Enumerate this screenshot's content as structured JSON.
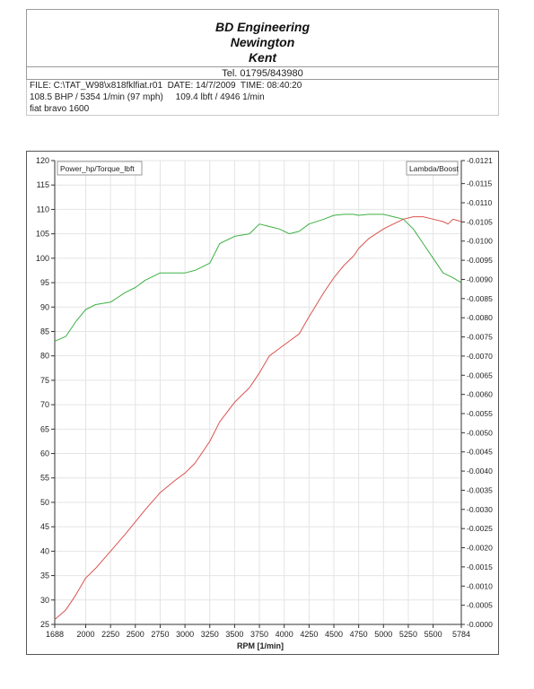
{
  "header": {
    "company_line1": "BD Engineering",
    "company_line2": "Newington",
    "company_line3": "Kent",
    "telephone": "Tel. 01795/843980"
  },
  "run_info": {
    "line1": "FILE: C:\\TAT_W98\\x818fklfiat.r01  DATE: 14/7/2009  TIME: 08:40:20",
    "line2": "108.5 BHP / 5354 1/min (97 mph)     109.4 lbft / 4946 1/min",
    "line3": "fiat bravo 1600"
  },
  "colors": {
    "power_torque_series": "#3cb043",
    "lambda_boost_series": "#d9534f",
    "grid": "#e4e4e4"
  },
  "chart_data": {
    "type": "line",
    "legend_left": "Power_hp/Torque_lbft",
    "legend_right": "Lambda/Boost",
    "xlabel": "RPM  [1/min]",
    "xlim": [
      1688,
      5784
    ],
    "ylim_left": [
      25,
      120
    ],
    "ylim_right": [
      0.0,
      0.0121
    ],
    "x_ticks": [
      "1688",
      "2000",
      "2250",
      "2500",
      "2750",
      "3000",
      "3250",
      "3500",
      "3750",
      "4000",
      "4250",
      "4500",
      "4750",
      "5000",
      "5250",
      "5500",
      "5784"
    ],
    "y_left_ticks": [
      "120",
      "115",
      "110",
      "105",
      "100",
      "95",
      "90",
      "85",
      "80",
      "75",
      "70",
      "65",
      "60",
      "55",
      "50",
      "45",
      "40",
      "35",
      "30",
      "25"
    ],
    "y_right_ticks": [
      "-0.0121",
      "-0.0115",
      "-0.0110",
      "-0.0105",
      "-0.0100",
      "-0.0095",
      "-0.0090",
      "-0.0085",
      "-0.0080",
      "-0.0075",
      "-0.0070",
      "-0.0065",
      "-0.0060",
      "-0.0055",
      "-0.0050",
      "-0.0045",
      "-0.0040",
      "-0.0035",
      "-0.0030",
      "-0.0025",
      "-0.0020",
      "-0.0015",
      "-0.0010",
      "-0.0005",
      "-0.0000"
    ],
    "grid": true,
    "series": [
      {
        "axis": "left",
        "x": [
          1688,
          1800,
          1900,
          2000,
          2100,
          2250,
          2400,
          2500,
          2600,
          2750,
          2900,
          3000,
          3100,
          3250,
          3350,
          3500,
          3650,
          3750,
          3850,
          3950,
          4050,
          4150,
          4250,
          4400,
          4500,
          4600,
          4700,
          4750,
          4850,
          5000,
          5100,
          5200,
          5300,
          5400,
          5500,
          5600,
          5700,
          5784
        ],
        "y": [
          83,
          84,
          87,
          89.5,
          90.5,
          91,
          93,
          94,
          95.5,
          97,
          97,
          97,
          97.5,
          99,
          103,
          104.5,
          105,
          107,
          106.5,
          106,
          105,
          105.5,
          107,
          108,
          108.8,
          109,
          109,
          108.8,
          109,
          109,
          108.5,
          108,
          106,
          103,
          100,
          97,
          96,
          95
        ]
      },
      {
        "axis": "left",
        "x": [
          1688,
          1800,
          1900,
          2000,
          2100,
          2250,
          2400,
          2500,
          2600,
          2750,
          2900,
          3000,
          3100,
          3250,
          3350,
          3500,
          3650,
          3750,
          3850,
          3950,
          4050,
          4150,
          4250,
          4400,
          4500,
          4600,
          4700,
          4750,
          4850,
          5000,
          5100,
          5200,
          5300,
          5400,
          5500,
          5600,
          5650,
          5700,
          5784
        ],
        "y": [
          26,
          28,
          31,
          34.5,
          36.5,
          40,
          43.5,
          46,
          48.5,
          52,
          54.5,
          56,
          58,
          62.5,
          66.5,
          70.5,
          73.5,
          76.5,
          80,
          81.5,
          83,
          84.5,
          88,
          93,
          96,
          98.5,
          100.5,
          102,
          104,
          106,
          107,
          108,
          108.5,
          108.5,
          108,
          107.5,
          107,
          108,
          107.5
        ]
      }
    ]
  }
}
